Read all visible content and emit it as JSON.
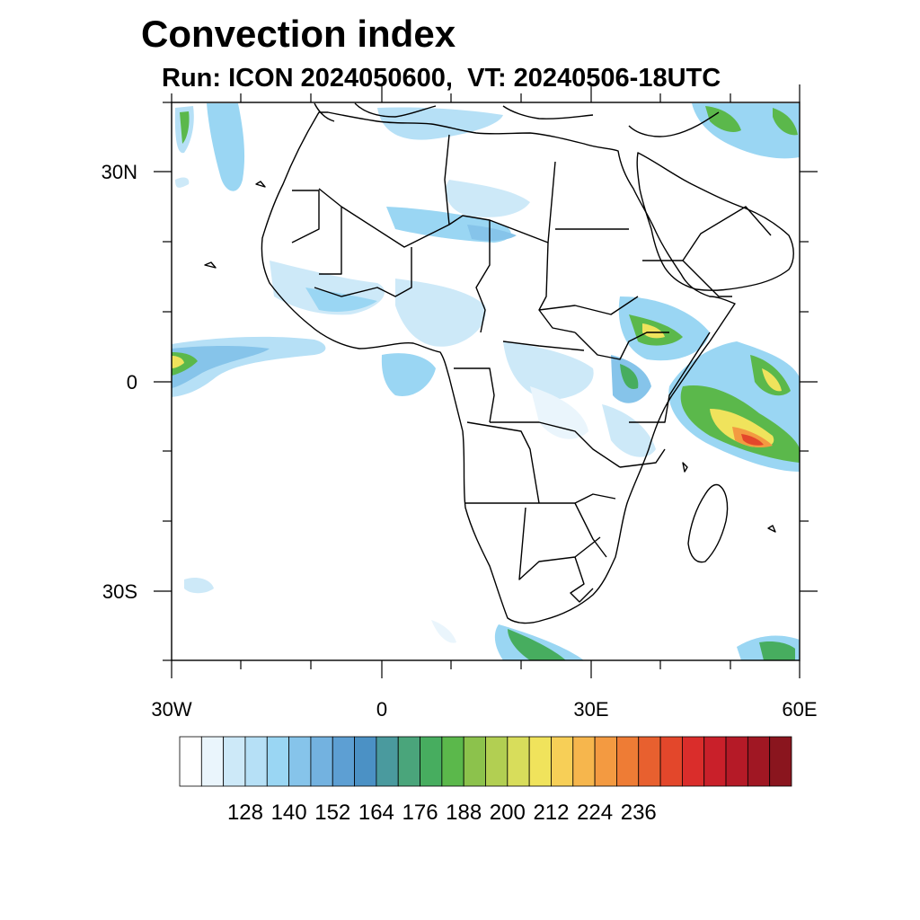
{
  "title": "Convection index",
  "subtitle": "Run: ICON 2024050600,  VT: 20240506-18UTC",
  "axes": {
    "lon_labels": [
      "30W",
      "0",
      "30E",
      "60E"
    ],
    "lat_labels": [
      "30N",
      "0",
      "30S"
    ]
  },
  "colorbar": {
    "labels": [
      "128",
      "140",
      "152",
      "164",
      "176",
      "188",
      "200",
      "212",
      "224",
      "236"
    ],
    "colors": [
      "#ffffff",
      "#eaf5fc",
      "#cde9f8",
      "#b6e0f6",
      "#9ad6f3",
      "#86c4ea",
      "#73b2e0",
      "#5d9fd3",
      "#4b91c5",
      "#4a9a9e",
      "#4aa57b",
      "#47ad5f",
      "#5bb84b",
      "#8cc24c",
      "#b2cf52",
      "#d8dd5b",
      "#f0e35c",
      "#f7cf57",
      "#f6b64d",
      "#f39a41",
      "#ee7c35",
      "#e8602f",
      "#e3472b",
      "#da2d2b",
      "#c9202a",
      "#b51a27",
      "#a01723",
      "#8a151e"
    ]
  }
}
